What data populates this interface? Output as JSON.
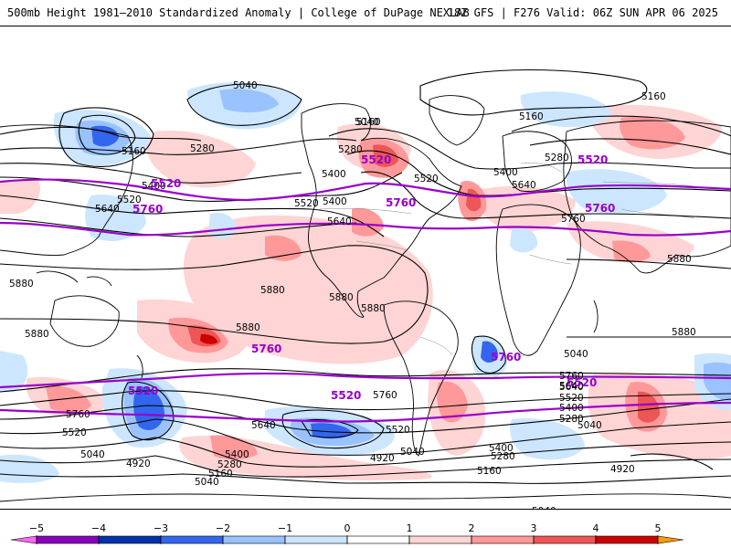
{
  "header": {
    "title": "500mb Height 1981–2010 Standardized Anomaly | College of DuPage NEXLAB",
    "run": "18Z GFS | F276 Valid: 06Z SUN APR 06 2025"
  },
  "colors": {
    "contour": "#000000",
    "highlight_contour": "#9900cc",
    "coast": "#000000",
    "border": "#888888",
    "neg1": "#cce6ff",
    "neg2": "#99c2ff",
    "neg3": "#3366ee",
    "neg4": "#0033aa",
    "neg5": "#8800bb",
    "pos1": "#ffd4d4",
    "pos2": "#ff9999",
    "pos3": "#ee5555",
    "pos4": "#cc0000",
    "pos5": "#ff9900"
  },
  "contour_labels": {
    "black": [
      "5040",
      "5160",
      "5280",
      "5400",
      "5520",
      "5640",
      "5880",
      "5040",
      "5160",
      "5280",
      "5400",
      "5520",
      "5640",
      "5880",
      "5160",
      "5160",
      "5280",
      "5400",
      "5640",
      "5880",
      "5880",
      "5040",
      "5160",
      "5280",
      "5400",
      "5520",
      "5640",
      "5760",
      "4920",
      "5040",
      "5280",
      "5400",
      "5520",
      "5640",
      "5760",
      "5040",
      "4920",
      "5040",
      "5160",
      "5280",
      "5400",
      "5520",
      "5640",
      "5760",
      "5040",
      "4920",
      "5880",
      "5880",
      "5760",
      "5880",
      "5880",
      "5400",
      "5520",
      "5040"
    ],
    "highlight": [
      "5520",
      "5760",
      "5520",
      "5760",
      "5520",
      "5760",
      "5760",
      "5520",
      "5760",
      "5520",
      "5520"
    ]
  },
  "legend": {
    "ticks": [
      "−5",
      "−4",
      "−3",
      "−2",
      "−1",
      "0",
      "1",
      "2",
      "3",
      "4",
      "5"
    ],
    "levels": [
      -5,
      -4,
      -3,
      -2,
      -1,
      0,
      1,
      2,
      3,
      4,
      5
    ]
  }
}
